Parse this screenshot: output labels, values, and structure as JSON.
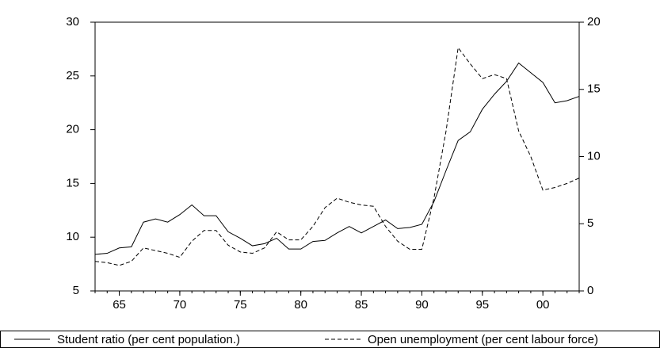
{
  "chart_data": {
    "type": "line",
    "x": [
      1963,
      1964,
      1965,
      1966,
      1967,
      1968,
      1969,
      1970,
      1971,
      1972,
      1973,
      1974,
      1975,
      1976,
      1977,
      1978,
      1979,
      1980,
      1981,
      1982,
      1983,
      1984,
      1985,
      1986,
      1987,
      1988,
      1989,
      1990,
      1991,
      1992,
      1993,
      1994,
      1995,
      1996,
      1997,
      1998,
      1999,
      2000,
      2001,
      2002,
      2003
    ],
    "xlim": [
      1963,
      2003
    ],
    "xticks": [
      {
        "value": 1965,
        "label": "65"
      },
      {
        "value": 1970,
        "label": "70"
      },
      {
        "value": 1975,
        "label": "75"
      },
      {
        "value": 1980,
        "label": "80"
      },
      {
        "value": 1985,
        "label": "85"
      },
      {
        "value": 1990,
        "label": "90"
      },
      {
        "value": 1995,
        "label": "95"
      },
      {
        "value": 2000,
        "label": "00"
      }
    ],
    "ylim": [
      5,
      30
    ],
    "yticks": [
      5,
      10,
      15,
      20,
      25,
      30
    ],
    "y2lim": [
      0,
      20
    ],
    "y2ticks": [
      0,
      5,
      10,
      15,
      20
    ],
    "series": [
      {
        "name": "Student ratio (per cent population.)",
        "color": "#000000",
        "line_style": "solid",
        "values": [
          8.4,
          8.5,
          9.0,
          9.1,
          11.4,
          11.7,
          11.4,
          12.1,
          13.0,
          12.0,
          12.0,
          10.5,
          9.9,
          9.2,
          9.4,
          9.9,
          8.9,
          8.9,
          9.6,
          9.7,
          10.4,
          11.0,
          10.4,
          11.0,
          11.6,
          10.8,
          10.9,
          11.2,
          13.3,
          16.2,
          19.0,
          19.8,
          21.9,
          23.3,
          24.5,
          26.2,
          25.3,
          24.4,
          22.5,
          22.7,
          23.1
        ]
      },
      {
        "name": "Open unemployment (per cent labour force)",
        "color": "#000000",
        "line_style": "dashed",
        "axis": "y2",
        "values": [
          2.2,
          2.1,
          1.9,
          2.2,
          3.2,
          3.0,
          2.8,
          2.5,
          3.7,
          4.5,
          4.5,
          3.4,
          2.9,
          2.8,
          3.2,
          4.4,
          3.8,
          3.8,
          4.8,
          6.2,
          6.9,
          6.6,
          6.4,
          6.3,
          4.8,
          3.7,
          3.1,
          3.1,
          6.9,
          11.9,
          18.1,
          16.9,
          15.8,
          16.1,
          15.8,
          11.9,
          10.0,
          7.5,
          7.7,
          8.0,
          8.4
        ]
      }
    ]
  }
}
